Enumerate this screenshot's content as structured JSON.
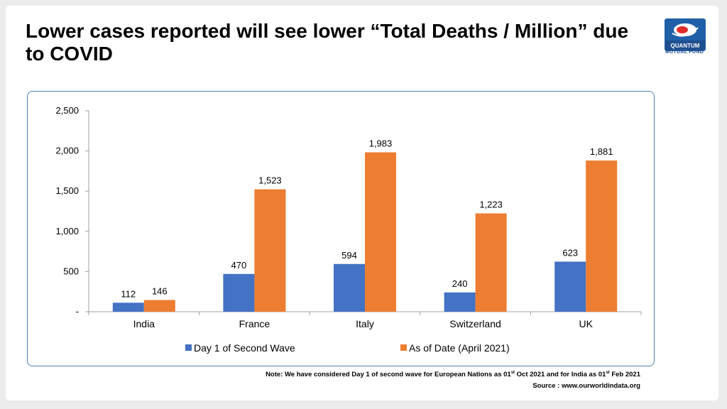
{
  "title": "Lower cases reported will see lower “Total Deaths / Million” due to COVID",
  "logo": {
    "text_line1": "QUANTUM",
    "text_line2": "MUTUAL FUND"
  },
  "note": {
    "prefix": "Note: We have considered Day 1 of  second wave for European Nations as  01",
    "sup1": "st",
    "middle": " Oct 2021 and for India as 01",
    "sup2": "st",
    "suffix": " Feb 2021"
  },
  "source": "Source : www.ourworldindata.org",
  "colors": {
    "series1": "#4472c4",
    "series2": "#ed7d31",
    "border": "#4f81bd"
  },
  "chart_data": {
    "type": "bar",
    "categories": [
      "India",
      "France",
      "Italy",
      "Switzerland",
      "UK"
    ],
    "series": [
      {
        "name": "Day 1 of Second Wave",
        "values": [
          112,
          470,
          594,
          240,
          623
        ],
        "labels": [
          "112",
          "470",
          "594",
          "240",
          "623"
        ]
      },
      {
        "name": "As of Date (April 2021)",
        "values": [
          146,
          1523,
          1983,
          1223,
          1881
        ],
        "labels": [
          "146",
          "1,523",
          "1,983",
          "1,223",
          "1,881"
        ]
      }
    ],
    "ylim": [
      0,
      2500
    ],
    "yticks": [
      0,
      500,
      1000,
      1500,
      2000,
      2500
    ],
    "ytick_labels": [
      "-",
      "500",
      "1,000",
      "1,500",
      "2,000",
      "2,500"
    ],
    "legend": "bottom",
    "grid": false
  }
}
